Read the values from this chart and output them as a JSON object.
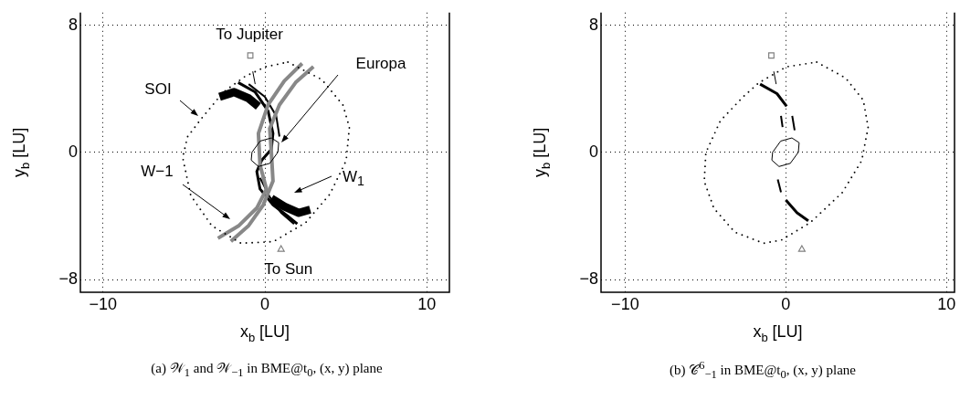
{
  "chart_data": [
    {
      "type": "line",
      "xlabel": "x$_{b}$ [LU]",
      "ylabel": "y$_{b}$ [LU]",
      "xlim": [
        -11.4,
        11.4
      ],
      "ylim": [
        -8.8,
        8.8
      ],
      "xticks": [
        -10,
        0,
        10
      ],
      "yticks": [
        -8,
        0,
        8
      ],
      "grid": true,
      "legend": false,
      "series": [
        {
          "type": "line",
          "color": "#888888",
          "x": [
            2.3,
            1.2,
            0.2,
            -0.4,
            -0.3,
            0.1,
            -0.5,
            -1.6,
            -2.9
          ],
          "values": [
            5.6,
            4.5,
            3.0,
            1.2,
            -0.8,
            -2.3,
            -3.5,
            -4.6,
            -5.4
          ]
        },
        {
          "type": "line",
          "color": "#888888",
          "x": [
            3.0,
            1.9,
            0.9,
            0.3,
            0.4,
            0.5,
            -0.1,
            -1.0,
            -2.1
          ],
          "values": [
            5.4,
            4.4,
            3.0,
            1.5,
            0,
            -1.8,
            -3.3,
            -4.6,
            -5.6
          ]
        },
        {
          "type": "line",
          "color": "#000000",
          "x": [
            -1.65,
            -0.6,
            0.2,
            0.5,
            0.4,
            -0.2,
            -0.5,
            -0.3,
            0.5,
            1.4,
            2.0
          ],
          "values": [
            4.4,
            3.8,
            2.6,
            1.2,
            0.2,
            -0.5,
            -1.2,
            -2.3,
            -3.3,
            -4.0,
            -4.5
          ]
        },
        {
          "type": "line",
          "color": "#000000",
          "x": [
            -1.0,
            0,
            0.7,
            0.9
          ],
          "values": [
            4.3,
            3.5,
            2.3,
            1.0
          ]
        },
        {
          "type": "line",
          "color": "#000000",
          "x": [
            -0.3,
            0.3,
            1.0,
            1.8
          ],
          "values": [
            -1.6,
            -2.8,
            -3.8,
            -4.5
          ]
        },
        {
          "type": "line",
          "color": "#000000",
          "x": [
            -2.8,
            -1.9,
            -1.0,
            -0.4
          ],
          "values": [
            3.5,
            3.8,
            3.4,
            2.9
          ]
        },
        {
          "type": "line",
          "color": "#000000",
          "x": [
            0.4,
            1.2,
            2.1,
            2.8
          ],
          "values": [
            -2.9,
            -3.4,
            -3.8,
            -3.6
          ]
        },
        {
          "type": "line",
          "color": "#000000",
          "x": [
            -0.75,
            -0.6
          ],
          "values": [
            5.1,
            4.3
          ]
        },
        {
          "type": "scatter",
          "marker": "square",
          "color": "#808080",
          "x": [
            -0.9
          ],
          "values": [
            6.1
          ]
        },
        {
          "type": "scatter",
          "marker": "triangle",
          "color": "#808080",
          "x": [
            1.0
          ],
          "values": [
            -6.1
          ]
        }
      ],
      "annotations": [
        {
          "text": "To Jupiter",
          "x": -0.9,
          "y": 6.1
        },
        "Europa",
        "SOI",
        "W−1",
        "W$_{1}$",
        {
          "text": "To Sun",
          "x": 1.0,
          "y": -6.1
        },
        "(a) 𝒲$_{1}$ and 𝒲$_{−1}$ in BME@t$_{0}$, (x, y) plane"
      ]
    },
    {
      "type": "line",
      "xlabel": "x$_{b}$ [LU]",
      "ylabel": "y$_{b}$ [LU]",
      "xlim": [
        -11.5,
        10.5
      ],
      "ylim": [
        -8.8,
        8.8
      ],
      "xticks": [
        -10,
        0,
        10
      ],
      "yticks": [
        -8,
        0,
        8
      ],
      "grid": true,
      "legend": false,
      "series": [
        {
          "type": "line",
          "color": "#000000",
          "x": [
            -1.6,
            -0.55,
            0.05
          ],
          "values": [
            4.3,
            3.7,
            2.9
          ]
        },
        {
          "type": "line",
          "color": "#000000",
          "x": [
            -0.3,
            -0.2
          ],
          "values": [
            2.3,
            1.6
          ]
        },
        {
          "type": "line",
          "color": "#000000",
          "x": [
            0.4,
            0.55
          ],
          "values": [
            2.3,
            1.4
          ]
        },
        {
          "type": "line",
          "color": "#000000",
          "x": [
            -0.5,
            -0.3
          ],
          "values": [
            -1.7,
            -2.5
          ]
        },
        {
          "type": "line",
          "color": "#000000",
          "x": [
            0,
            0.7,
            1.4
          ],
          "values": [
            -3.0,
            -3.8,
            -4.3
          ]
        },
        {
          "type": "line",
          "color": "#000000",
          "x": [
            -0.75,
            -0.6
          ],
          "values": [
            5.1,
            4.3
          ]
        },
        {
          "type": "scatter",
          "marker": "square",
          "color": "#808080",
          "x": [
            -0.9
          ],
          "values": [
            6.1
          ]
        },
        {
          "type": "scatter",
          "marker": "triangle",
          "color": "#808080",
          "x": [
            1.0
          ],
          "values": [
            -6.1
          ]
        }
      ],
      "annotations": [
        "(b) 𝒞$^{6}$$_{−1}$ in BME@t$_{0}$, (x, y) plane"
      ]
    }
  ]
}
